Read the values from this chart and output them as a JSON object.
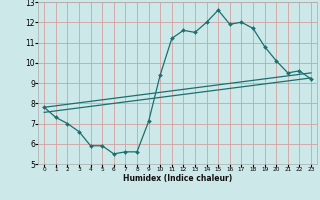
{
  "xlabel": "Humidex (Indice chaleur)",
  "bg_color": "#cde8e8",
  "grid_color": "#d4a0a0",
  "line_color": "#1a7070",
  "xlim": [
    -0.5,
    23.5
  ],
  "ylim": [
    5,
    13
  ],
  "xticks": [
    0,
    1,
    2,
    3,
    4,
    5,
    6,
    7,
    8,
    9,
    10,
    11,
    12,
    13,
    14,
    15,
    16,
    17,
    18,
    19,
    20,
    21,
    22,
    23
  ],
  "yticks": [
    5,
    6,
    7,
    8,
    9,
    10,
    11,
    12,
    13
  ],
  "line1_x": [
    0,
    1,
    2,
    3,
    4,
    5,
    6,
    7,
    8,
    9,
    10,
    11,
    12,
    13,
    14,
    15,
    16,
    17,
    18,
    19,
    20,
    21,
    22,
    23
  ],
  "line1_y": [
    7.8,
    7.3,
    7.0,
    6.6,
    5.9,
    5.9,
    5.5,
    5.6,
    5.6,
    7.1,
    9.4,
    11.2,
    11.6,
    11.5,
    12.0,
    12.6,
    11.9,
    12.0,
    11.7,
    10.8,
    10.1,
    9.5,
    9.6,
    9.2
  ],
  "line2_x": [
    0,
    23
  ],
  "line2_y": [
    7.55,
    9.25
  ],
  "line3_x": [
    0,
    23
  ],
  "line3_y": [
    7.8,
    9.5
  ],
  "markersize": 2.0,
  "linewidth": 0.9
}
